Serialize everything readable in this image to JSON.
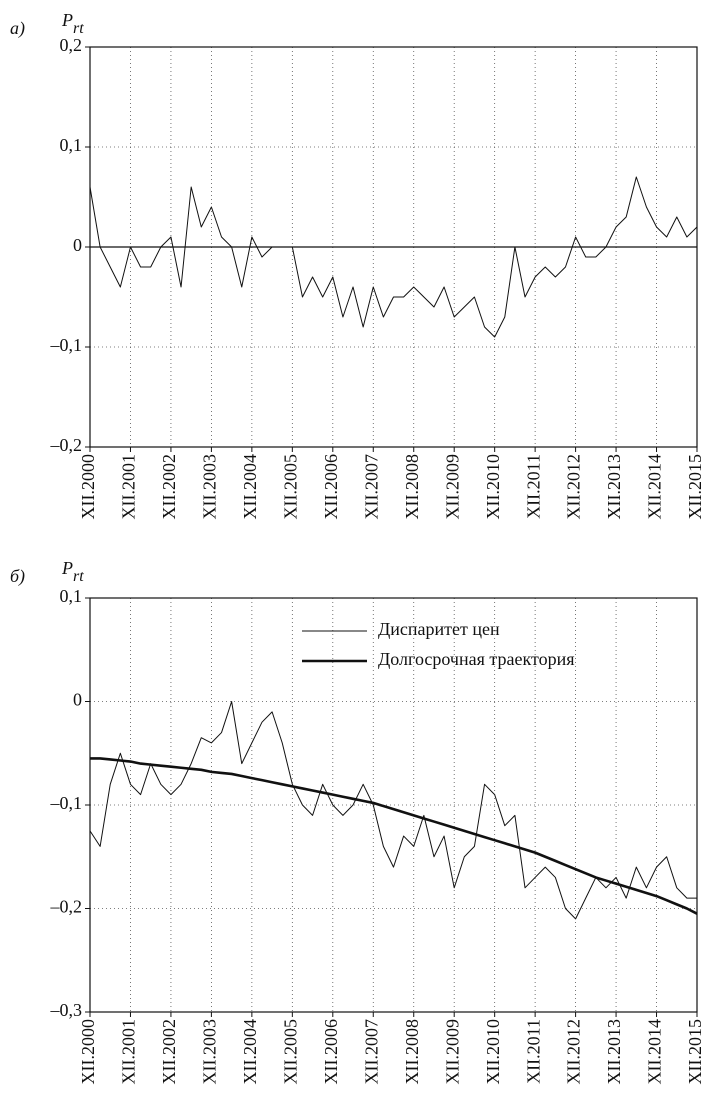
{
  "chart_data": [
    {
      "type": "line",
      "panel_label": "а)",
      "ylabel": {
        "main": "P",
        "sub": "rt"
      },
      "categories": [
        "XII.2000",
        null,
        null,
        null,
        "XII.2001",
        null,
        null,
        null,
        "XII.2002",
        null,
        null,
        null,
        "XII.2003",
        null,
        null,
        null,
        "XII.2004",
        null,
        null,
        null,
        "XII.2005",
        null,
        null,
        null,
        "XII.2006",
        null,
        null,
        null,
        "XII.2007",
        null,
        null,
        null,
        "XII.2008",
        null,
        null,
        null,
        "XII.2009",
        null,
        null,
        null,
        "XII.2010",
        null,
        null,
        null,
        "XII.2011",
        null,
        null,
        null,
        "XII.2012",
        null,
        null,
        null,
        "XII.2013",
        null,
        null,
        null,
        "XII.2014",
        null,
        null,
        null,
        "XII.2015"
      ],
      "series": [
        {
          "name": null,
          "color": "#111111",
          "linewidth": 1,
          "values": [
            0.06,
            0.0,
            -0.02,
            -0.04,
            0.0,
            -0.02,
            -0.02,
            0.0,
            0.01,
            -0.04,
            0.06,
            0.02,
            0.04,
            0.01,
            0.0,
            -0.04,
            0.01,
            -0.01,
            0.0,
            0.0,
            0.0,
            -0.05,
            -0.03,
            -0.05,
            -0.03,
            -0.07,
            -0.04,
            -0.08,
            -0.04,
            -0.07,
            -0.05,
            -0.05,
            -0.04,
            -0.05,
            -0.06,
            -0.04,
            -0.07,
            -0.06,
            -0.05,
            -0.08,
            -0.09,
            -0.07,
            0.0,
            -0.05,
            -0.03,
            -0.02,
            -0.03,
            -0.02,
            0.01,
            -0.01,
            -0.01,
            0.0,
            0.02,
            0.03,
            0.07,
            0.04,
            0.02,
            0.01,
            0.03,
            0.01,
            0.02
          ]
        }
      ],
      "ylim": [
        -0.2,
        0.2
      ],
      "yticks": [
        {
          "value": -0.2,
          "label": "–0,2"
        },
        {
          "value": -0.1,
          "label": "–0,1"
        },
        0,
        {
          "value": 0.1,
          "label": "0,1"
        },
        {
          "value": 0.2,
          "label": "0,2"
        }
      ],
      "zero_line": true,
      "grid": true
    },
    {
      "type": "line",
      "panel_label": "б)",
      "ylabel": {
        "main": "P",
        "sub": "rt"
      },
      "categories": [
        "XII.2000",
        null,
        null,
        null,
        "XII.2001",
        null,
        null,
        null,
        "XII.2002",
        null,
        null,
        null,
        "XII.2003",
        null,
        null,
        null,
        "XII.2004",
        null,
        null,
        null,
        "XII.2005",
        null,
        null,
        null,
        "XII.2006",
        null,
        null,
        null,
        "XII.2007",
        null,
        null,
        null,
        "XII.2008",
        null,
        null,
        null,
        "XII.2009",
        null,
        null,
        null,
        "XII.2010",
        null,
        null,
        null,
        "XII.2011",
        null,
        null,
        null,
        "XII.2012",
        null,
        null,
        null,
        "XII.2013",
        null,
        null,
        null,
        "XII.2014",
        null,
        null,
        null,
        "XII.2015"
      ],
      "series": [
        {
          "name": "Диспаритет цен",
          "color": "#111111",
          "linewidth": 1,
          "values": [
            -0.125,
            -0.14,
            -0.08,
            -0.05,
            -0.08,
            -0.09,
            -0.06,
            -0.08,
            -0.09,
            -0.08,
            -0.06,
            -0.035,
            -0.04,
            -0.03,
            0.0,
            -0.06,
            -0.04,
            -0.02,
            -0.01,
            -0.04,
            -0.08,
            -0.1,
            -0.11,
            -0.08,
            -0.1,
            -0.11,
            -0.1,
            -0.08,
            -0.1,
            -0.14,
            -0.16,
            -0.13,
            -0.14,
            -0.11,
            -0.15,
            -0.13,
            -0.18,
            -0.15,
            -0.14,
            -0.08,
            -0.09,
            -0.12,
            -0.11,
            -0.18,
            -0.17,
            -0.16,
            -0.17,
            -0.2,
            -0.21,
            -0.19,
            -0.17,
            -0.18,
            -0.17,
            -0.19,
            -0.16,
            -0.18,
            -0.16,
            -0.15,
            -0.18,
            -0.19,
            -0.19
          ]
        },
        {
          "name": "Долгосрочная траектория",
          "color": "#111111",
          "linewidth": 2.6,
          "values": [
            -0.055,
            -0.055,
            -0.056,
            -0.057,
            -0.058,
            -0.06,
            -0.061,
            -0.062,
            -0.063,
            -0.064,
            -0.065,
            -0.066,
            -0.068,
            -0.069,
            -0.07,
            -0.072,
            -0.074,
            -0.076,
            -0.078,
            -0.08,
            -0.082,
            -0.084,
            -0.086,
            -0.088,
            -0.09,
            -0.092,
            -0.094,
            -0.096,
            -0.098,
            -0.101,
            -0.104,
            -0.107,
            -0.11,
            -0.113,
            -0.116,
            -0.119,
            -0.122,
            -0.125,
            -0.128,
            -0.131,
            -0.134,
            -0.137,
            -0.14,
            -0.143,
            -0.146,
            -0.15,
            -0.154,
            -0.158,
            -0.162,
            -0.166,
            -0.17,
            -0.173,
            -0.176,
            -0.179,
            -0.182,
            -0.185,
            -0.188,
            -0.192,
            -0.196,
            -0.2,
            -0.205
          ]
        }
      ],
      "ylim": [
        -0.3,
        0.1
      ],
      "yticks": [
        {
          "value": -0.3,
          "label": "–0,3"
        },
        {
          "value": -0.2,
          "label": "–0,2"
        },
        {
          "value": -0.1,
          "label": "–0,1"
        },
        0,
        {
          "value": 0.1,
          "label": "0,1"
        }
      ],
      "legend": "upper right",
      "zero_line": false,
      "grid": true
    }
  ]
}
